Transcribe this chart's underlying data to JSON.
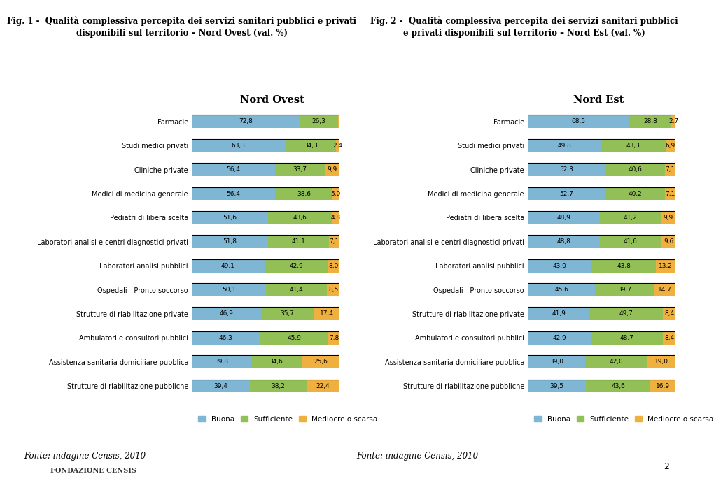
{
  "fig1_title_line1": "Fig. 1 -  Qualità complessiva percepita dei servizi sanitari pubblici e privati",
  "fig1_title_line2": "disponibili sul territorio – Nord Ovest (val. %)",
  "fig2_title_line1": "Fig. 2 -  Qualità complessiva percepita dei servizi sanitari pubblici",
  "fig2_title_line2": "e privati disponibili sul territorio – Nord Est (val. %)",
  "chart1_subtitle": "Nord Ovest",
  "chart2_subtitle": "Nord Est",
  "categories": [
    "Farmacie",
    "Studi medici privati",
    "Cliniche private",
    "Medici di medicina generale",
    "Pediatri di libera scelta",
    "Laboratori analisi e centri diagnostici privati",
    "Laboratori analisi pubblici",
    "Ospedali - Pronto soccorso",
    "Strutture di riabilitazione private",
    "Ambulatori e consultori pubblici",
    "Assistenza sanitaria domiciliare pubblica",
    "Strutture di riabilitazione pubbliche"
  ],
  "nord_ovest": {
    "buona": [
      72.8,
      63.3,
      56.4,
      56.4,
      51.6,
      51.8,
      49.1,
      50.1,
      46.9,
      46.3,
      39.8,
      39.4
    ],
    "sufficiente": [
      26.3,
      34.3,
      33.7,
      38.6,
      43.6,
      41.1,
      42.9,
      41.4,
      35.7,
      45.9,
      34.6,
      38.2
    ],
    "mediocre": [
      0.9,
      2.4,
      9.9,
      5.0,
      4.8,
      7.1,
      8.0,
      8.5,
      17.4,
      7.8,
      25.6,
      22.4
    ]
  },
  "nord_est": {
    "buona": [
      68.5,
      49.8,
      52.3,
      52.7,
      48.9,
      48.8,
      43.0,
      45.6,
      41.9,
      42.9,
      39.0,
      39.5
    ],
    "sufficiente": [
      28.8,
      43.3,
      40.6,
      40.2,
      41.2,
      41.6,
      43.8,
      39.7,
      49.7,
      48.7,
      42.0,
      43.6
    ],
    "mediocre": [
      2.7,
      6.9,
      7.1,
      7.1,
      9.9,
      9.6,
      13.2,
      14.7,
      8.4,
      8.4,
      19.0,
      16.9
    ]
  },
  "color_buona": "#7eb6d4",
  "color_sufficiente": "#92c056",
  "color_mediocre": "#f0b040",
  "color_bg": "#ffffff",
  "color_bar_text": "#000000",
  "color_label_text": "#333333",
  "bar_height": 0.55,
  "legend_labels": [
    "Buona",
    "Sufficiente",
    "Mediocre o scarsa"
  ],
  "fonte_text": "Fonte: indagine Censis, 2010",
  "page_number": "2",
  "logo_text": "FONDAZIONE CENSIS",
  "title_fontsize": 8.5,
  "label_fontsize": 7.0,
  "bar_value_fontsize": 6.5,
  "subtitle_fontsize": 10.5,
  "legend_fontsize": 7.5,
  "fonte_fontsize": 8.5
}
